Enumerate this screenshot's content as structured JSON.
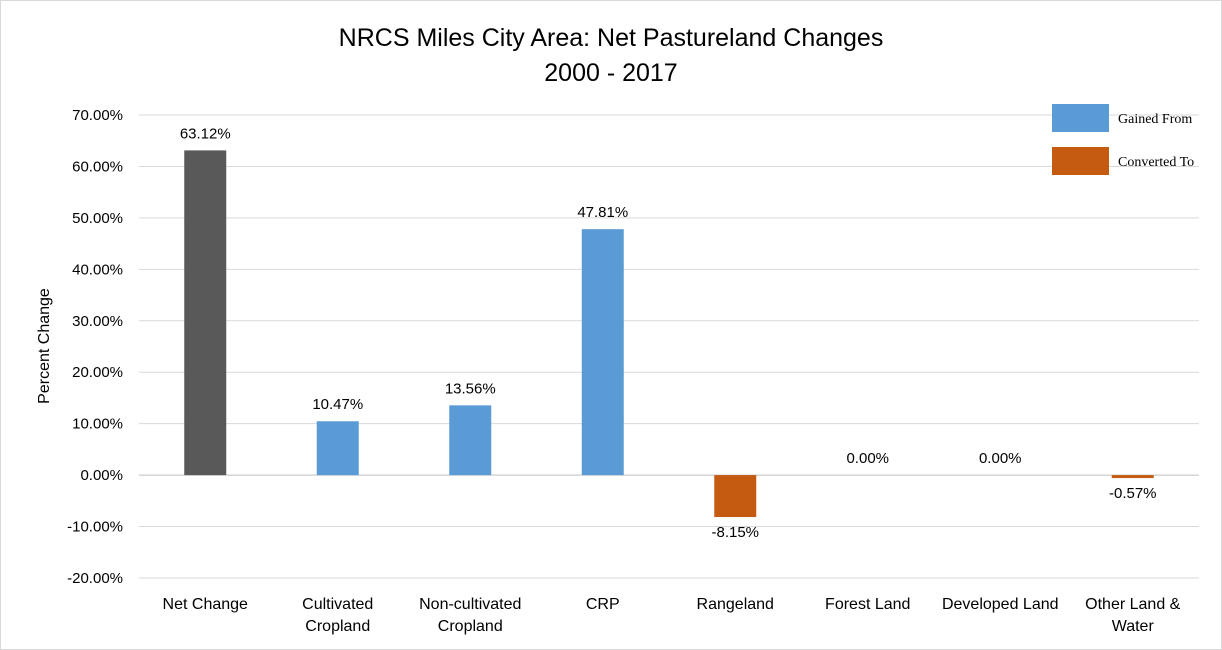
{
  "chart_data": {
    "type": "bar",
    "title_lines": [
      "NRCS Miles City Area: Net Pastureland Changes",
      "2000 - 2017"
    ],
    "xlabel": "",
    "ylabel": "Percent Change",
    "ylim": [
      -0.2,
      0.7
    ],
    "ytick_values": [
      -0.2,
      -0.1,
      0.0,
      0.1,
      0.2,
      0.3,
      0.4,
      0.5,
      0.6,
      0.7
    ],
    "ytick_labels": [
      "-20.00%",
      "-10.00%",
      "0.00%",
      "10.00%",
      "20.00%",
      "30.00%",
      "40.00%",
      "50.00%",
      "60.00%",
      "70.00%"
    ],
    "grid": true,
    "legend_position": "top-right",
    "legend": [
      {
        "label": "Gained From",
        "color": "#5b9bd5"
      },
      {
        "label": "Converted To",
        "color": "#c55a11"
      }
    ],
    "categories": [
      [
        "Net Change"
      ],
      [
        "Cultivated",
        "Cropland"
      ],
      [
        "Non-cultivated",
        "Cropland"
      ],
      [
        "CRP"
      ],
      [
        "Rangeland"
      ],
      [
        "Forest Land"
      ],
      [
        "Developed Land"
      ],
      [
        "Other Land &",
        "Water"
      ]
    ],
    "values": [
      0.6312,
      0.1047,
      0.1356,
      0.4781,
      -0.0815,
      0.0,
      0.0,
      -0.0057
    ],
    "data_labels": [
      "63.12%",
      "10.47%",
      "13.56%",
      "47.81%",
      "-8.15%",
      "0.00%",
      "0.00%",
      "-0.57%"
    ],
    "bar_colors": [
      "#595959",
      "#5b9bd5",
      "#5b9bd5",
      "#5b9bd5",
      "#c55a11",
      "#c55a11",
      "#c55a11",
      "#c55a11"
    ]
  }
}
